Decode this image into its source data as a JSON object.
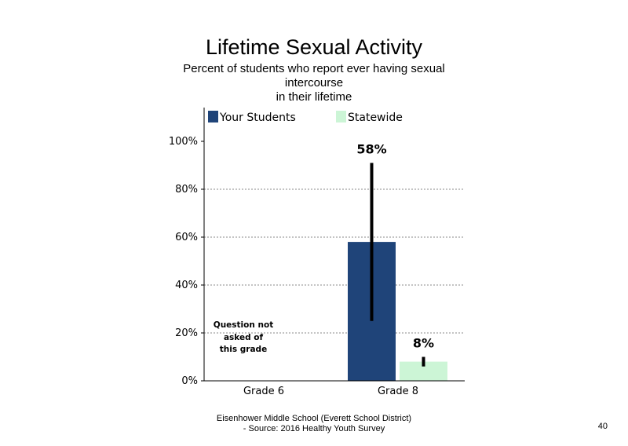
{
  "chart_data": {
    "type": "bar",
    "title": "Lifetime Sexual Activity",
    "subtitle": "Percent of students  who report ever having sexual intercourse in their lifetime",
    "subtitle_lines": [
      "Percent of students  who report ever having sexual",
      "intercourse",
      "in their lifetime"
    ],
    "categories": [
      "Grade 6",
      "Grade 8"
    ],
    "series": [
      {
        "name": "Your Students",
        "color": "#1f4479",
        "values": [
          null,
          58
        ],
        "error_low": [
          null,
          25
        ],
        "error_high": [
          null,
          91
        ]
      },
      {
        "name": "Statewide",
        "color": "#ccf5d6",
        "values": [
          null,
          8
        ],
        "error_low": [
          null,
          6
        ],
        "error_high": [
          null,
          10
        ]
      }
    ],
    "data_labels": [
      "58%",
      "8%"
    ],
    "yticks": [
      "0%",
      "20%",
      "40%",
      "60%",
      "80%",
      "100%"
    ],
    "ylim": [
      0,
      113
    ],
    "grid": true,
    "legend": "top",
    "annotation_lines": [
      "Question not",
      "asked of",
      "this grade"
    ]
  },
  "footer": {
    "line1": "Eisenhower Middle School (Everett School District)",
    "line2": "- Source: 2016 Healthy  Youth Survey"
  },
  "page_number": "40"
}
